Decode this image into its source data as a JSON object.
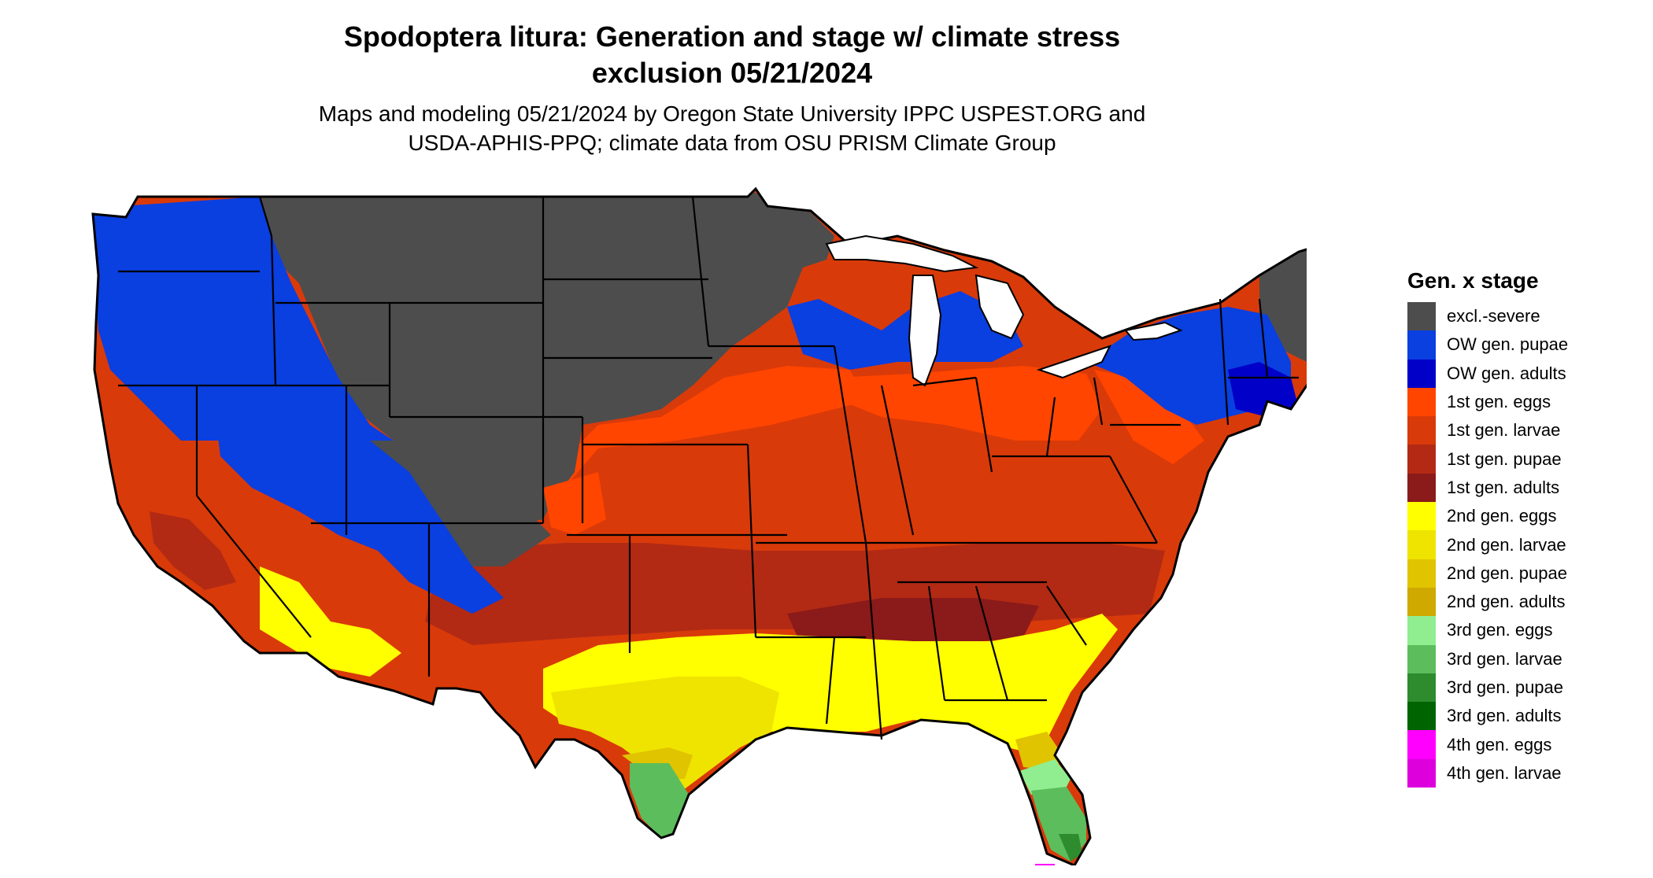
{
  "title_line1": "Spodoptera litura: Generation and stage w/ climate stress",
  "title_line2": "exclusion 05/21/2024",
  "subtitle_line1": "Maps and modeling 05/21/2024 by Oregon State University IPPC USPEST.ORG and",
  "subtitle_line2": "USDA-APHIS-PPQ; climate data from OSU PRISM Climate Group",
  "legend": {
    "title": "Gen. x stage",
    "items": [
      {
        "label": "excl.-severe",
        "color": "#4d4d4d"
      },
      {
        "label": "OW gen. pupae",
        "color": "#0a3fe0"
      },
      {
        "label": "OW gen. adults",
        "color": "#0000c8"
      },
      {
        "label": "1st gen. eggs",
        "color": "#ff4500"
      },
      {
        "label": "1st gen. larvae",
        "color": "#d93a0a"
      },
      {
        "label": "1st gen. pupae",
        "color": "#b22a14"
      },
      {
        "label": "1st gen. adults",
        "color": "#8b1a1a"
      },
      {
        "label": "2nd gen. eggs",
        "color": "#ffff00"
      },
      {
        "label": "2nd gen. larvae",
        "color": "#eee400"
      },
      {
        "label": "2nd gen. pupae",
        "color": "#e0c400"
      },
      {
        "label": "2nd gen. adults",
        "color": "#cfa800"
      },
      {
        "label": "3rd gen. eggs",
        "color": "#90ee90"
      },
      {
        "label": "3rd gen. larvae",
        "color": "#5cbd5c"
      },
      {
        "label": "3rd gen. pupae",
        "color": "#2e8b2e"
      },
      {
        "label": "3rd gen. adults",
        "color": "#006400"
      },
      {
        "label": "4th gen. eggs",
        "color": "#ff00ff"
      },
      {
        "label": "4th gen. larvae",
        "color": "#dd00dd"
      }
    ]
  },
  "colors": {
    "border": "#000000",
    "lake": "#ffffff"
  }
}
